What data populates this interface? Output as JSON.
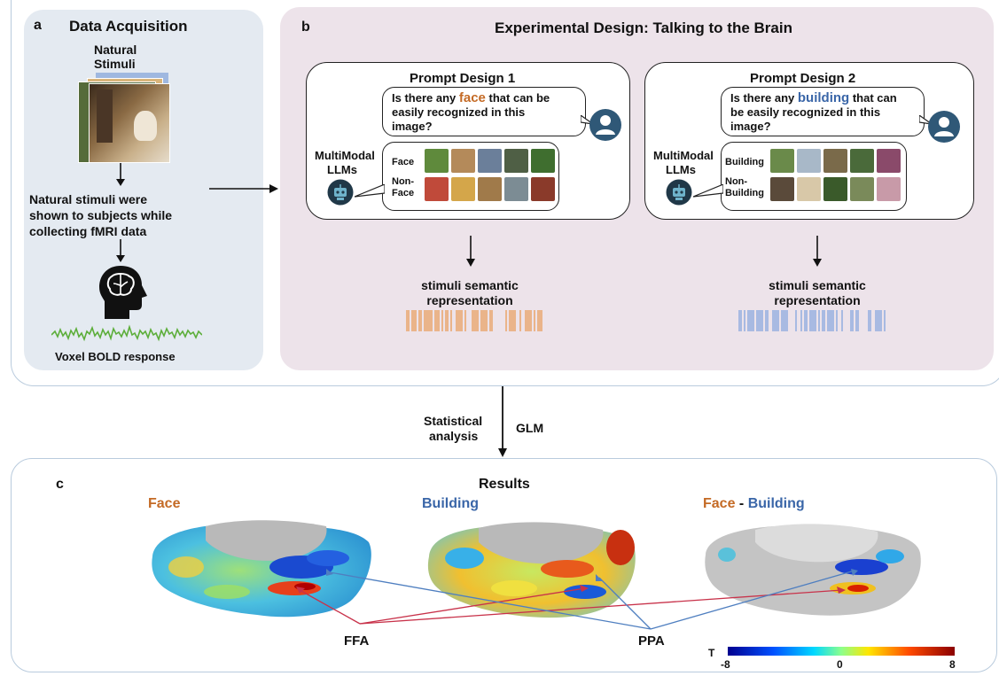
{
  "panel_a": {
    "tag": "a",
    "title": "Data Acquisition",
    "stimuli_label_1": "Natural",
    "stimuli_label_2": "Stimuli",
    "description_1": "Natural stimuli were",
    "description_2": "shown to subjects while",
    "description_3": "collecting fMRI data",
    "bold_label": "Voxel BOLD response"
  },
  "panel_b": {
    "tag": "b",
    "title": "Experimental Design: Talking to the Brain",
    "prompt1": {
      "title": "Prompt Design 1",
      "question_before": "Is there any ",
      "question_keyword": "face",
      "question_after_1": " that can be",
      "question_line2": "easily recognized in this",
      "question_line3": "image?",
      "llm_label_1": "MultiModal",
      "llm_label_2": "LLMs",
      "category_pos": "Face",
      "category_neg_1": "Non-",
      "category_neg_2": "Face",
      "output_label_1": "stimuli semantic",
      "output_label_2": "representation"
    },
    "prompt2": {
      "title": "Prompt Design 2",
      "question_before": "Is there any ",
      "question_keyword": "building",
      "question_after_1": " that can",
      "question_line2": "be easily recognized in this",
      "question_line3": "image?",
      "llm_label_1": "MultiModal",
      "llm_label_2": "LLMs",
      "category_pos": "Building",
      "category_neg_1": "Non-",
      "category_neg_2": "Building",
      "output_label_1": "stimuli semantic",
      "output_label_2": "representation"
    }
  },
  "analysis": {
    "left_1": "Statistical",
    "left_2": "analysis",
    "right": "GLM"
  },
  "panel_c": {
    "tag": "c",
    "title": "Results",
    "maps": [
      {
        "label": "Face",
        "color": "#c46a25"
      },
      {
        "label": "Building",
        "color": "#3a66a8"
      }
    ],
    "contrast_face": "Face",
    "contrast_sep": " - ",
    "contrast_building": "Building",
    "roi_ffa": "FFA",
    "roi_ppa": "PPA",
    "colorbar": {
      "label": "T",
      "ticks": [
        "-8",
        "0",
        "8"
      ]
    }
  },
  "colors": {
    "face_accent": "#c46a25",
    "building_accent": "#3a66a8",
    "ffa_line": "#c8324a",
    "ppa_line": "#4f7fc0",
    "bold_trace": "#5cae3a",
    "panel_a_bg": "#e4eaf1",
    "panel_b_bg": "#ede3ea"
  },
  "icons": [
    "user-icon",
    "robot-icon",
    "brain-head-icon"
  ]
}
